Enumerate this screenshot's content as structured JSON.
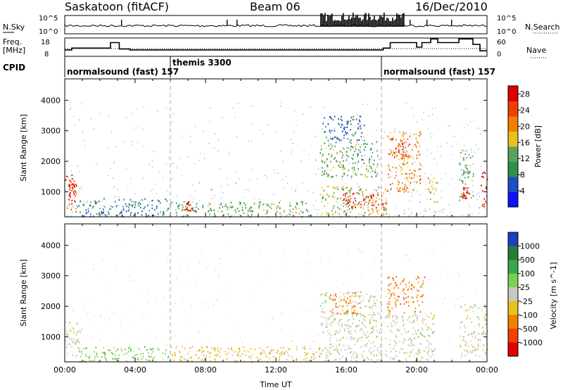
{
  "header": {
    "title": "Saskatoon (fitACF)",
    "beam": "Beam 06",
    "date": "16/Dec/2010"
  },
  "strip": {
    "nsky_label": "N.Sky",
    "nsky_top": "10^5",
    "nsky_bottom": "10^0",
    "nsearch_top": "10^5",
    "nsearch_bottom": "10^0",
    "nsearch_label": "N.Search",
    "freq_label_1": "Freq.",
    "freq_label_2": "[MHz]",
    "freq_top": "18",
    "freq_bottom": "8",
    "nave_top": "60",
    "nave_bottom": "0",
    "nave_label": "Nave",
    "cpid_label": "CPID",
    "cpid_segments": [
      {
        "label": "normalsound (fast) 157",
        "start_hr": 0,
        "end_hr": 6
      },
      {
        "label": "themis 3300",
        "start_hr": 6,
        "end_hr": 18
      },
      {
        "label": "normalsound (fast) 157",
        "start_hr": 18,
        "end_hr": 24
      }
    ],
    "freq_steps": [
      {
        "t": 0,
        "mhz": 11.5
      },
      {
        "t": 0.4,
        "mhz": 12.5
      },
      {
        "t": 2.6,
        "mhz": 15.5
      },
      {
        "t": 3.1,
        "mhz": 12.0
      },
      {
        "t": 3.7,
        "mhz": 11.5
      },
      {
        "t": 18.1,
        "mhz": 12.5
      },
      {
        "t": 18.5,
        "mhz": 15.5
      },
      {
        "t": 20.0,
        "mhz": 13.0
      },
      {
        "t": 20.3,
        "mhz": 15.5
      },
      {
        "t": 20.8,
        "mhz": 17.5
      },
      {
        "t": 21.2,
        "mhz": 15.5
      },
      {
        "t": 22.4,
        "mhz": 17.5
      },
      {
        "t": 23.2,
        "mhz": 14.5
      },
      {
        "t": 23.6,
        "mhz": 11.0
      },
      {
        "t": 24,
        "mhz": 11.0
      }
    ]
  },
  "chart_data": [
    {
      "type": "heatmap",
      "quantity": "Power",
      "xlabel": "",
      "ylabel": "Slant Range [km]",
      "xlim": [
        "00:00",
        "24:00"
      ],
      "ylim": [
        180,
        4700
      ],
      "yticks": [
        1000,
        2000,
        3000,
        4000
      ],
      "colorbar": {
        "label": "Power [dB]",
        "ticks": [
          4,
          8,
          12,
          16,
          20,
          24,
          28
        ],
        "range": [
          0,
          30
        ],
        "colors": [
          "#1010ff",
          "#1a50c0",
          "#2f8f4c",
          "#5aa060",
          "#e8c020",
          "#f08000",
          "#f04000",
          "#e00000"
        ]
      },
      "regions": [
        {
          "t0": 0.0,
          "t1": 0.7,
          "r0": 400,
          "r1": 1600,
          "level": 24
        },
        {
          "t0": 0.2,
          "t1": 0.6,
          "r0": 800,
          "r1": 1300,
          "level": 28
        },
        {
          "t0": 0.6,
          "t1": 6.0,
          "r0": 200,
          "r1": 800,
          "level": 8
        },
        {
          "t0": 6.0,
          "t1": 14.0,
          "r0": 200,
          "r1": 700,
          "level": 12
        },
        {
          "t0": 6.8,
          "t1": 7.3,
          "r0": 400,
          "r1": 700,
          "level": 28
        },
        {
          "t0": 14.5,
          "t1": 17.8,
          "r0": 1500,
          "r1": 2700,
          "level": 12
        },
        {
          "t0": 14.6,
          "t1": 17.0,
          "r0": 2700,
          "r1": 3500,
          "level": 6
        },
        {
          "t0": 14.5,
          "t1": 18.5,
          "r0": 200,
          "r1": 1200,
          "level": 16
        },
        {
          "t0": 15.8,
          "t1": 18.2,
          "r0": 500,
          "r1": 1000,
          "level": 28
        },
        {
          "t0": 18.3,
          "t1": 20.2,
          "r0": 1000,
          "r1": 3000,
          "level": 20
        },
        {
          "t0": 18.6,
          "t1": 19.6,
          "r0": 2100,
          "r1": 2800,
          "level": 26
        },
        {
          "t0": 20.6,
          "t1": 21.2,
          "r0": 600,
          "r1": 1500,
          "level": 16
        },
        {
          "t0": 22.4,
          "t1": 23.2,
          "r0": 700,
          "r1": 2400,
          "level": 12
        },
        {
          "t0": 22.6,
          "t1": 23.0,
          "r0": 800,
          "r1": 1200,
          "level": 28
        },
        {
          "t0": 23.6,
          "t1": 24.0,
          "r0": 500,
          "r1": 1700,
          "level": 28
        }
      ]
    },
    {
      "type": "heatmap",
      "quantity": "Velocity",
      "xlabel": "Time UT",
      "ylabel": "Slant Range [km]",
      "xlim": [
        "00:00",
        "24:00"
      ],
      "xticks": [
        "00:00",
        "04:00",
        "08:00",
        "12:00",
        "16:00",
        "20:00",
        "00:00"
      ],
      "ylim": [
        180,
        4700
      ],
      "yticks": [
        1000,
        2000,
        3000,
        4000
      ],
      "colorbar": {
        "label": "Velocity [m s^-1]",
        "ticks": [
          "1000",
          "500",
          "100",
          "25",
          "-25",
          "-100",
          "-500",
          "-1000"
        ],
        "colors": [
          "#1f3fc0",
          "#2a7a3c",
          "#3aa848",
          "#7ad050",
          "#c8c8c0",
          "#e8c020",
          "#f08000",
          "#f04000",
          "#e00000"
        ]
      },
      "regions": [
        {
          "t0": 0.0,
          "t1": 1.0,
          "r0": 400,
          "r1": 1500,
          "level": "-25..25"
        },
        {
          "t0": 0.7,
          "t1": 6.0,
          "r0": 200,
          "r1": 700,
          "level": "25..100"
        },
        {
          "t0": 6.0,
          "t1": 14.5,
          "r0": 200,
          "r1": 700,
          "level": "-100..-25"
        },
        {
          "t0": 14.5,
          "t1": 18.0,
          "r0": 200,
          "r1": 2500,
          "level": "-25..25"
        },
        {
          "t0": 15.0,
          "t1": 16.8,
          "r0": 1700,
          "r1": 2500,
          "level": "-500..-100"
        },
        {
          "t0": 18.3,
          "t1": 20.5,
          "r0": 1800,
          "r1": 3000,
          "level": "-500..-100"
        },
        {
          "t0": 18.2,
          "t1": 21.0,
          "r0": 200,
          "r1": 1800,
          "level": "-25..25"
        },
        {
          "t0": 22.4,
          "t1": 24.0,
          "r0": 400,
          "r1": 2100,
          "level": "-25..25"
        }
      ]
    }
  ]
}
